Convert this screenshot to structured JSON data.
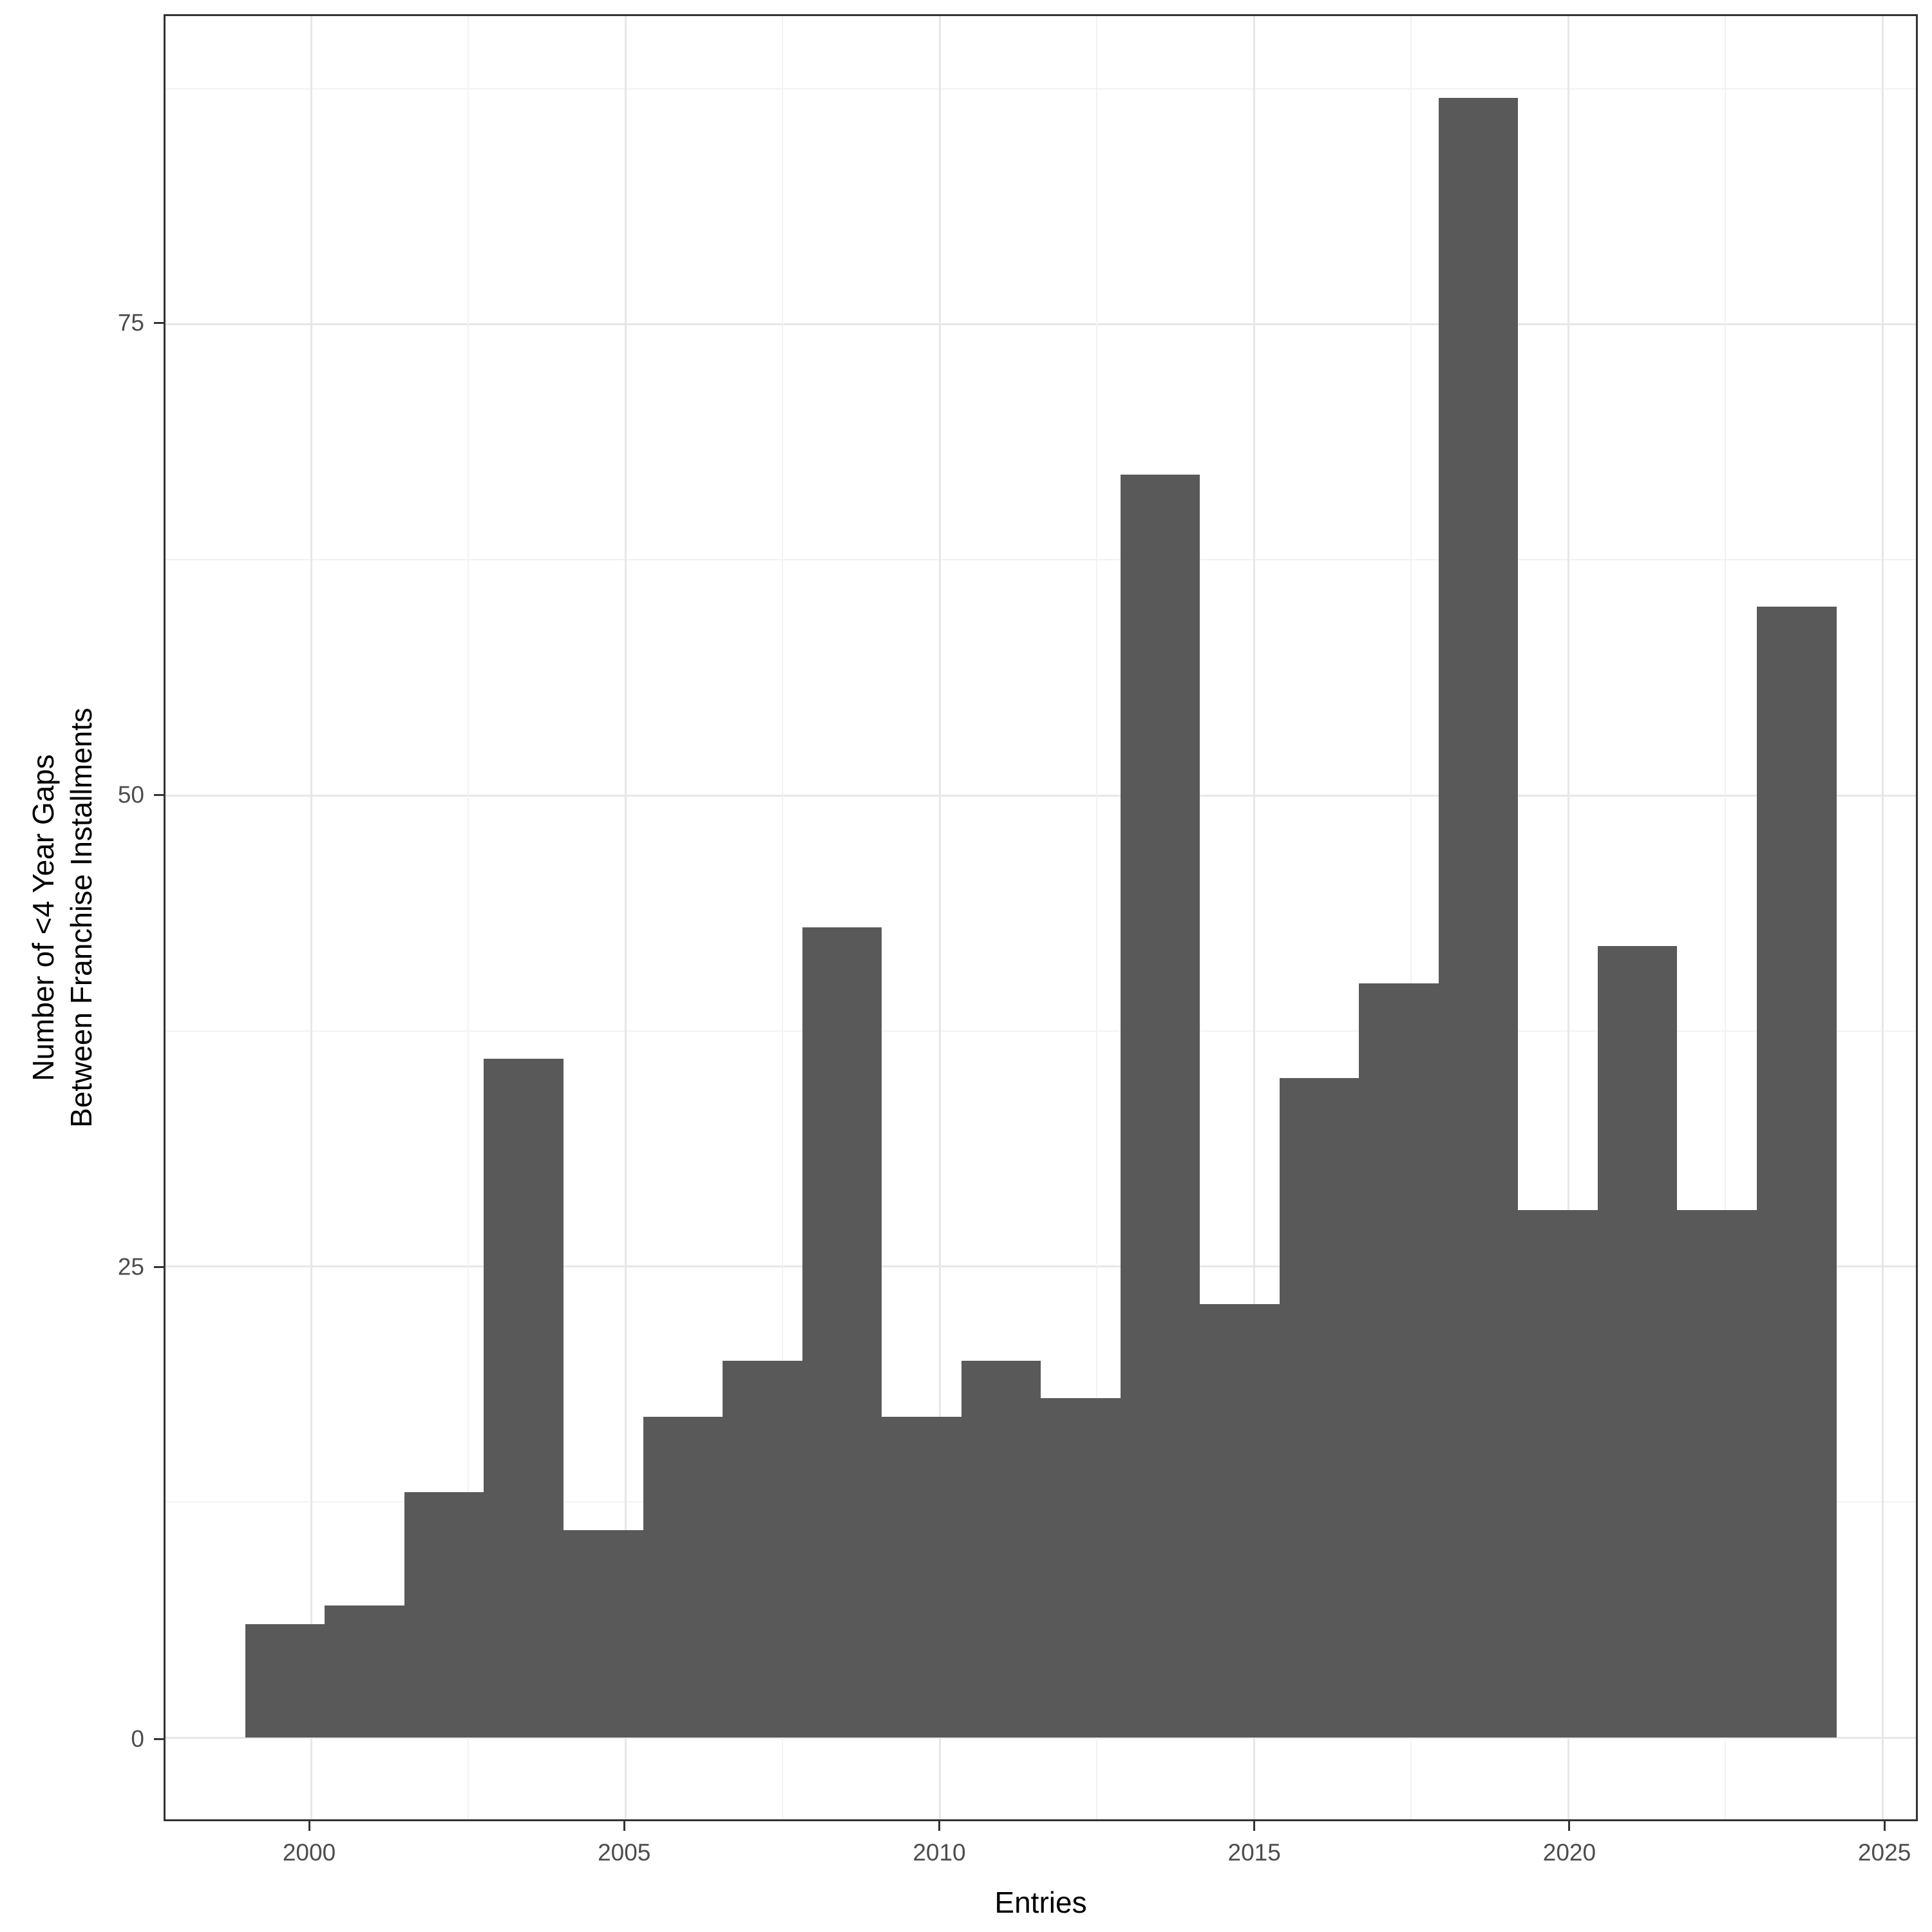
{
  "figure": {
    "background": "#FFFFFF",
    "panel_border_color": "#333333",
    "grid_major_color": "#E7E7E7",
    "grid_minor_color": "#F2F2F2",
    "bar_fill": "#595959",
    "axis_text_color": "#4D4D4D",
    "axis_title_color": "#000000"
  },
  "axes": {
    "x": {
      "title": "Entries",
      "major_ticks": [
        2000,
        2005,
        2010,
        2015,
        2020,
        2025
      ],
      "minor_ticks": [
        2002.5,
        2007.5,
        2012.5,
        2017.5,
        2022.5
      ],
      "domain": [
        1997.69,
        2025.53
      ]
    },
    "y": {
      "title_line1": "Number of <4 Year Gaps",
      "title_line2": "Between Franchise Installments",
      "major_ticks": [
        0,
        25,
        50,
        75
      ],
      "minor_ticks": [
        12.5,
        37.5,
        62.5,
        87.5
      ],
      "domain": [
        -4.35,
        91.35
      ]
    }
  },
  "chart_data": {
    "type": "bar",
    "subtype": "histogram",
    "title": "",
    "xlabel": "Entries",
    "ylabel": "Number of <4 Year Gaps Between Franchise Installments",
    "x_range": [
      1998.96,
      2024.27
    ],
    "ylim": [
      0,
      91
    ],
    "n_bins": 20,
    "bin_width_years": 1.2656,
    "grid": "on",
    "legend": "none",
    "bins": [
      {
        "start": 1998.96,
        "end": 2000.22,
        "count": 6
      },
      {
        "start": 2000.22,
        "end": 2001.49,
        "count": 7
      },
      {
        "start": 2001.49,
        "end": 2002.75,
        "count": 13
      },
      {
        "start": 2002.75,
        "end": 2004.02,
        "count": 36
      },
      {
        "start": 2004.02,
        "end": 2005.29,
        "count": 11
      },
      {
        "start": 2005.29,
        "end": 2006.55,
        "count": 17
      },
      {
        "start": 2006.55,
        "end": 2007.82,
        "count": 20
      },
      {
        "start": 2007.82,
        "end": 2009.08,
        "count": 43
      },
      {
        "start": 2009.08,
        "end": 2010.35,
        "count": 17
      },
      {
        "start": 2010.35,
        "end": 2011.61,
        "count": 20
      },
      {
        "start": 2011.61,
        "end": 2012.88,
        "count": 18
      },
      {
        "start": 2012.88,
        "end": 2014.14,
        "count": 67
      },
      {
        "start": 2014.14,
        "end": 2015.41,
        "count": 23
      },
      {
        "start": 2015.41,
        "end": 2016.67,
        "count": 35
      },
      {
        "start": 2016.67,
        "end": 2017.94,
        "count": 40
      },
      {
        "start": 2017.94,
        "end": 2019.2,
        "count": 87
      },
      {
        "start": 2019.2,
        "end": 2020.47,
        "count": 28
      },
      {
        "start": 2020.47,
        "end": 2021.73,
        "count": 42
      },
      {
        "start": 2021.73,
        "end": 2023.0,
        "count": 28
      },
      {
        "start": 2023.0,
        "end": 2024.27,
        "count": 60
      }
    ]
  }
}
